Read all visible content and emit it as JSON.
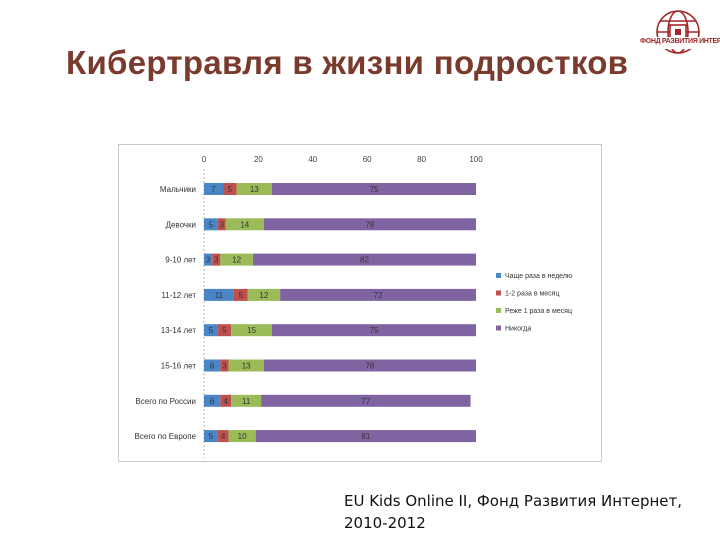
{
  "slide": {
    "title": "Кибертравля в жизни подростков",
    "source_line1": "EU Kids Online II, Фонд Развития Интернет,",
    "source_line2": "2010-2012"
  },
  "logo": {
    "text": "ФОНД РАЗВИТИЯ ИНТЕРНЕТ",
    "color": "#a3262a"
  },
  "chart_data": {
    "type": "bar",
    "orientation": "horizontal",
    "stacked": true,
    "xlim": [
      0,
      100
    ],
    "ticks": [
      0,
      20,
      40,
      60,
      80,
      100
    ],
    "categories": [
      "Мальчики",
      "Девочки",
      "9-10 лет",
      "11-12 лет",
      "13-14 лет",
      "15-16 лет",
      "Всего по России",
      "Всего по Европе"
    ],
    "series": [
      {
        "name": "Чаще раза в неделю",
        "color": "#4a86c5",
        "values": [
          7,
          5,
          3,
          11,
          5,
          6,
          6,
          5
        ]
      },
      {
        "name": "1-2 раза в месяц",
        "color": "#c0504d",
        "values": [
          5,
          3,
          3,
          5,
          5,
          3,
          4,
          4
        ]
      },
      {
        "name": "Реже 1 раза в месяц",
        "color": "#9bbb59",
        "values": [
          13,
          14,
          12,
          12,
          15,
          13,
          11,
          10
        ]
      },
      {
        "name": "Никогда",
        "color": "#8064a2",
        "values": [
          75,
          78,
          82,
          72,
          75,
          78,
          77,
          81
        ]
      }
    ],
    "legend_position": "right",
    "gridlines": false
  }
}
